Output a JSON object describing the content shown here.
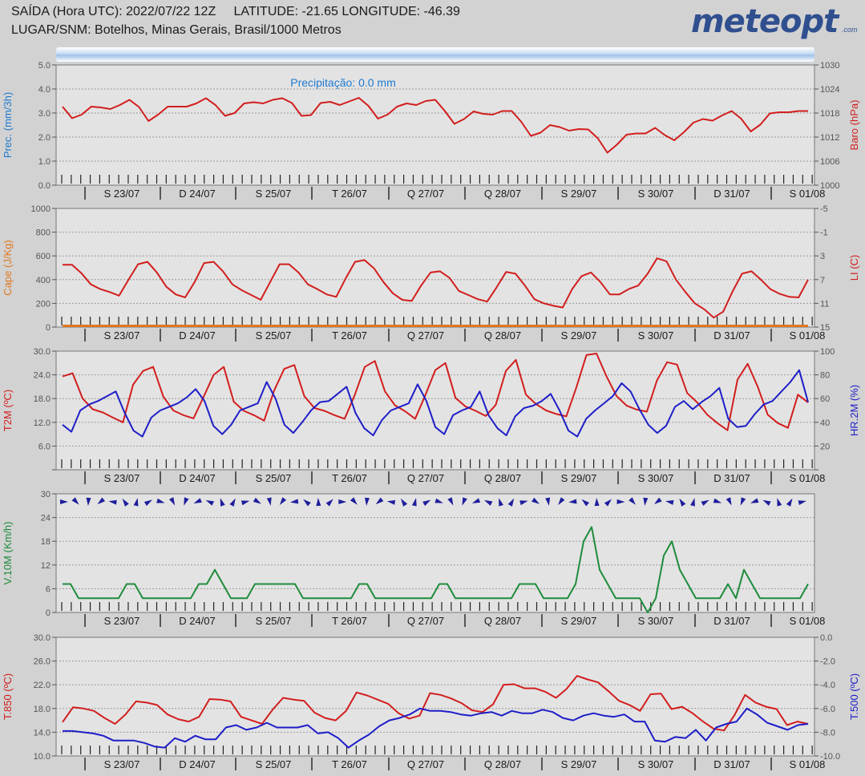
{
  "header": {
    "line1": "SAÍDA (Hora UTC): 2022/07/22 12Z     LATITUDE: -21.65 LONGITUDE: -46.39",
    "line2": "LUGAR/SNM: Botelhos, Minas Gerais, Brasil/1000 Metros",
    "logo": "meteopt",
    "logo_domain": ".com"
  },
  "day_labels": [
    "S 23/07",
    "D 24/07",
    "S 25/07",
    "T 26/07",
    "Q 27/07",
    "Q 28/07",
    "S 29/07",
    "S 30/07",
    "D 31/07",
    "S 01/08"
  ],
  "chart_data": [
    {
      "type": "line",
      "annotation": "Precipitação: 0.0 mm",
      "ylabel": "Prec. (mm/3h)",
      "ylabel_color": "#1f7ad0",
      "ylim": [
        0,
        5
      ],
      "yticks": [
        "0.0",
        "1.0",
        "2.0",
        "3.0",
        "4.0",
        "5.0"
      ],
      "y2label": "Baro (hPa)",
      "y2label_color": "#d21e1e",
      "y2lim": [
        1000,
        1030
      ],
      "y2ticks": [
        "1000",
        "1006",
        "1012",
        "1018",
        "1024",
        "1030"
      ],
      "series": [
        {
          "axis": "y2",
          "color": "#d21e1e",
          "values": [
            1019.6,
            1016.7,
            1017.6,
            1019.6,
            1019.4,
            1019.0,
            1020.0,
            1021.3,
            1019.5,
            1016.0,
            1017.6,
            1019.6,
            1019.6,
            1019.6,
            1020.4,
            1021.7,
            1020.0,
            1017.3,
            1018.0,
            1020.4,
            1020.7,
            1020.4,
            1021.3,
            1021.7,
            1020.5,
            1017.3,
            1017.5,
            1020.5,
            1020.8,
            1020.0,
            1020.9,
            1021.8,
            1019.8,
            1016.6,
            1017.6,
            1019.6,
            1020.4,
            1020.0,
            1021.0,
            1021.3,
            1018.5,
            1015.3,
            1016.5,
            1018.4,
            1017.8,
            1017.6,
            1018.5,
            1018.5,
            1015.8,
            1012.3,
            1013.1,
            1015.0,
            1014.5,
            1013.6,
            1014.0,
            1013.9,
            1011.7,
            1008.1,
            1010.1,
            1012.6,
            1012.9,
            1012.9,
            1014.3,
            1012.5,
            1011.2,
            1013.2,
            1015.6,
            1016.5,
            1016.1,
            1017.4,
            1018.5,
            1016.6,
            1013.4,
            1015.1,
            1017.9,
            1018.2,
            1018.2,
            1018.5,
            1018.5
          ]
        }
      ]
    },
    {
      "type": "line",
      "ylabel": "Cape (J/Kg)",
      "ylabel_color": "#e07820",
      "ylim": [
        0,
        1000
      ],
      "yticks": [
        "0",
        "200",
        "400",
        "600",
        "800",
        "1000"
      ],
      "y2label": "LI (C)",
      "y2label_color": "#d21e1e",
      "y2lim": [
        15,
        -5
      ],
      "y2ticks": [
        "15",
        "11",
        "7",
        "3",
        "-1",
        "-5"
      ],
      "series": [
        {
          "axis": "y",
          "color": "#e07820",
          "values": [
            10,
            10,
            10,
            10,
            10,
            10,
            10,
            10,
            10,
            10,
            10,
            10,
            10,
            10,
            10,
            10,
            10,
            10,
            10,
            10,
            10,
            10,
            10,
            10,
            10,
            10,
            10,
            10,
            10,
            10,
            10,
            10,
            10,
            10,
            10,
            10,
            10,
            10,
            10,
            10,
            10,
            10,
            10,
            10,
            10,
            10,
            10,
            10,
            10,
            10,
            10,
            10,
            10,
            10,
            10,
            10,
            10,
            10,
            10,
            10,
            10,
            10,
            10,
            10,
            10,
            10,
            10,
            10,
            10,
            10,
            10,
            10,
            10,
            10,
            10,
            10,
            10,
            10,
            10
          ]
        },
        {
          "axis": "y2",
          "color": "#d21e1e",
          "values": [
            4.5,
            4.5,
            5.9,
            7.8,
            8.6,
            9.1,
            9.7,
            7.0,
            4.4,
            4.0,
            5.8,
            8.2,
            9.5,
            10.0,
            7.4,
            4.2,
            4.0,
            5.6,
            7.8,
            8.8,
            9.6,
            10.4,
            7.4,
            4.4,
            4.4,
            5.8,
            7.8,
            8.6,
            9.5,
            9.9,
            6.8,
            4.0,
            3.7,
            5.1,
            7.4,
            9.3,
            10.4,
            10.6,
            8.0,
            5.8,
            5.6,
            6.7,
            8.9,
            9.6,
            10.3,
            10.7,
            8.3,
            5.7,
            6.0,
            8.0,
            10.3,
            11.0,
            11.4,
            11.7,
            8.6,
            6.4,
            5.8,
            7.4,
            9.5,
            9.5,
            8.6,
            8.0,
            6.0,
            3.4,
            3.9,
            7.0,
            9.1,
            11.0,
            12.0,
            13.4,
            12.4,
            9.0,
            6.0,
            5.6,
            7.0,
            8.6,
            9.4,
            9.9,
            10.0,
            7.0
          ]
        }
      ]
    },
    {
      "type": "line",
      "ylabel": "T2M (ºC)",
      "ylabel_color": "#d21e1e",
      "ylim": [
        0,
        30
      ],
      "yticks": [
        "",
        "6.0",
        "12.0",
        "18.0",
        "24.0",
        "30.0"
      ],
      "y2label": "HR.2M (%)",
      "y2label_color": "#1e1ec8",
      "y2lim": [
        0,
        100
      ],
      "y2ticks": [
        "",
        "20",
        "40",
        "60",
        "80",
        "100"
      ],
      "series": [
        {
          "axis": "y",
          "color": "#d21e1e",
          "values": [
            23.6,
            24.4,
            18.0,
            15.3,
            14.5,
            13.2,
            12.0,
            21.5,
            25.0,
            26.0,
            18.5,
            15.0,
            13.8,
            13.0,
            18.4,
            24.0,
            26.0,
            17.2,
            14.9,
            13.8,
            12.4,
            20.0,
            25.5,
            26.5,
            18.6,
            15.6,
            14.9,
            13.8,
            12.9,
            18.9,
            26.0,
            27.5,
            19.8,
            16.3,
            14.8,
            12.9,
            18.8,
            25.2,
            27.0,
            18.2,
            16.0,
            14.9,
            13.6,
            16.4,
            25.0,
            27.8,
            19.0,
            16.6,
            15.0,
            14.1,
            13.5,
            20.8,
            29.0,
            29.4,
            23.6,
            18.6,
            16.2,
            15.2,
            14.7,
            22.6,
            27.2,
            26.6,
            19.4,
            17.0,
            13.9,
            11.8,
            10.0,
            22.8,
            26.8,
            21.0,
            13.9,
            11.8,
            10.6,
            19.0,
            17.0
          ]
        },
        {
          "axis": "y2",
          "color": "#1e1ec8",
          "values": [
            38,
            32,
            50,
            55,
            58,
            62,
            66,
            48,
            33,
            28,
            44,
            50,
            53,
            56,
            61,
            68,
            58,
            37,
            30,
            38,
            50,
            53,
            56,
            74,
            60,
            38,
            31,
            40,
            50,
            57,
            58,
            64,
            70,
            48,
            35,
            29,
            42,
            50,
            53,
            56,
            72,
            58,
            36,
            30,
            46,
            50,
            53,
            66,
            46,
            35,
            29,
            45,
            52,
            54,
            58,
            64,
            50,
            33,
            28,
            43,
            50,
            56,
            62,
            73,
            66,
            51,
            38,
            31,
            37,
            53,
            58,
            51,
            57,
            62,
            69,
            43,
            36,
            37,
            47,
            55,
            58,
            66,
            74,
            84,
            57
          ]
        }
      ]
    },
    {
      "type": "line",
      "ylabel": "V.10M (Km/h)",
      "ylabel_color": "#1e8c3c",
      "ylim": [
        0,
        30
      ],
      "yticks": [
        "0",
        "6",
        "12",
        "18",
        "24",
        "30"
      ],
      "series": [
        {
          "axis": "y",
          "color": "#1e8c3c",
          "values": [
            7.2,
            7.2,
            3.6,
            3.6,
            3.6,
            3.6,
            3.6,
            3.6,
            7.2,
            7.2,
            3.6,
            3.6,
            3.6,
            3.6,
            3.6,
            3.6,
            3.6,
            7.2,
            7.2,
            10.8,
            7.2,
            3.6,
            3.6,
            3.6,
            7.2,
            7.2,
            7.2,
            7.2,
            7.2,
            7.2,
            3.6,
            3.6,
            3.6,
            3.6,
            3.6,
            3.6,
            3.6,
            7.2,
            7.2,
            3.6,
            3.6,
            3.6,
            3.6,
            3.6,
            3.6,
            3.6,
            3.6,
            7.2,
            7.2,
            3.6,
            3.6,
            3.6,
            3.6,
            3.6,
            3.6,
            3.6,
            3.6,
            7.2,
            7.2,
            7.2,
            3.6,
            3.6,
            3.6,
            3.6,
            7.2,
            18.0,
            21.6,
            10.8,
            7.2,
            3.6,
            3.6,
            3.6,
            3.6,
            0.0,
            3.6,
            14.4,
            18.0,
            10.8,
            7.2,
            3.6,
            3.6,
            3.6,
            3.6,
            7.2,
            3.6,
            10.8,
            7.2,
            3.6,
            3.6,
            3.6,
            3.6,
            3.6,
            3.6,
            7.2
          ]
        }
      ]
    },
    {
      "type": "line",
      "ylabel": "T.850 (ºC)",
      "ylabel_color": "#d21e1e",
      "ylim": [
        10,
        30
      ],
      "yticks": [
        "10.0",
        "14.0",
        "18.0",
        "22.0",
        "26.0",
        "30.0"
      ],
      "y2label": "T.500 (ºC)",
      "y2label_color": "#1e1ec8",
      "y2lim": [
        -10,
        0
      ],
      "y2ticks": [
        "-10.0",
        "-8.0",
        "-6.0",
        "-4.0",
        "-2.0",
        "0.0"
      ],
      "series": [
        {
          "axis": "y",
          "color": "#d21e1e",
          "values": [
            15.7,
            18.2,
            18.0,
            17.6,
            16.4,
            15.4,
            17.0,
            19.2,
            19.0,
            18.6,
            17.0,
            16.2,
            15.8,
            16.6,
            19.6,
            19.5,
            19.2,
            16.6,
            16.0,
            15.4,
            17.8,
            19.8,
            19.5,
            19.3,
            17.3,
            16.4,
            16.0,
            17.6,
            20.7,
            20.2,
            19.5,
            18.8,
            17.2,
            16.3,
            16.8,
            20.6,
            20.3,
            19.7,
            18.9,
            17.7,
            17.4,
            18.7,
            22.0,
            22.1,
            21.4,
            21.4,
            20.8,
            19.8,
            21.3,
            23.5,
            22.9,
            22.4,
            20.9,
            19.3,
            18.6,
            17.6,
            20.4,
            20.5,
            17.9,
            18.3,
            17.2,
            15.8,
            14.6,
            14.3,
            16.9,
            20.3,
            19.0,
            18.3,
            17.9,
            15.2,
            15.8,
            15.4
          ]
        },
        {
          "axis": "y2",
          "color": "#1e1ec8",
          "values": [
            -7.9,
            -7.9,
            -8.0,
            -8.1,
            -8.3,
            -8.7,
            -8.7,
            -8.7,
            -8.9,
            -9.2,
            -9.3,
            -8.5,
            -8.8,
            -8.3,
            -8.6,
            -8.6,
            -7.6,
            -7.4,
            -7.8,
            -7.6,
            -7.2,
            -7.6,
            -7.6,
            -7.6,
            -7.4,
            -8.1,
            -8.0,
            -8.5,
            -9.3,
            -8.7,
            -8.2,
            -7.5,
            -7.0,
            -6.8,
            -6.5,
            -6.0,
            -6.2,
            -6.2,
            -6.3,
            -6.5,
            -6.6,
            -6.4,
            -6.3,
            -6.6,
            -6.2,
            -6.4,
            -6.4,
            -6.1,
            -6.3,
            -6.8,
            -7.0,
            -6.6,
            -6.4,
            -6.6,
            -6.7,
            -6.5,
            -7.1,
            -7.1,
            -8.7,
            -8.8,
            -8.4,
            -8.5,
            -7.8,
            -8.7,
            -7.6,
            -7.3,
            -7.1,
            -6.0,
            -6.5,
            -7.2,
            -7.5,
            -7.8,
            -7.4,
            -7.3
          ]
        }
      ]
    }
  ]
}
